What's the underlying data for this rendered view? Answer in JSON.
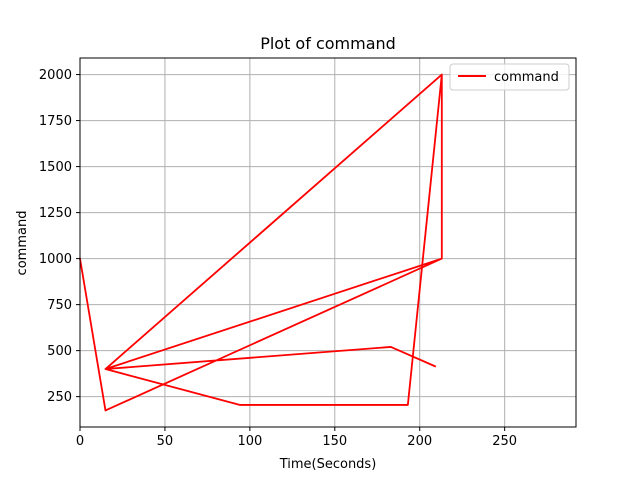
{
  "chart_data": {
    "type": "line",
    "title": "Plot of command",
    "xlabel": "Time(Seconds)",
    "ylabel": "command",
    "xlim": [
      0,
      292
    ],
    "ylim": [
      85,
      2090
    ],
    "xticks": [
      0,
      50,
      100,
      150,
      200,
      250
    ],
    "yticks": [
      250,
      500,
      750,
      1000,
      1250,
      1500,
      1750,
      2000
    ],
    "grid": true,
    "legend_position": "upper-right",
    "series": [
      {
        "name": "command",
        "color": "#ff0000",
        "x": [
          0,
          15,
          15,
          213,
          213,
          213,
          213,
          15,
          15,
          94,
          193,
          213,
          213,
          213,
          15,
          15,
          183,
          209
        ],
        "y": [
          1000,
          175,
          175,
          1000,
          1000,
          2000,
          2000,
          400,
          400,
          205,
          205,
          2000,
          1000,
          1000,
          400,
          400,
          520,
          415
        ]
      }
    ]
  }
}
